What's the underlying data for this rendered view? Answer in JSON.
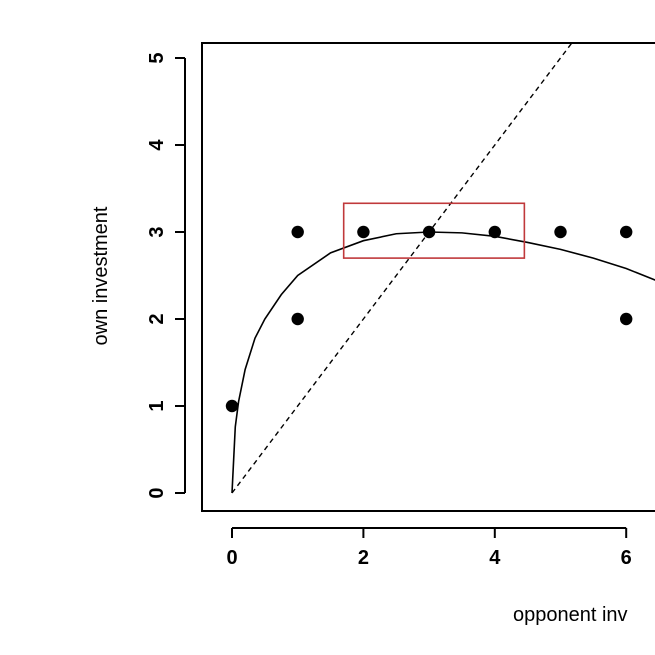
{
  "chart_data": {
    "type": "scatter",
    "xlabel": "opponent inv",
    "ylabel": "own investment",
    "xlim": [
      0,
      6.5
    ],
    "ylim": [
      0,
      5
    ],
    "x_ticks": [
      "0",
      "2",
      "4",
      "6"
    ],
    "y_ticks": [
      "0",
      "1",
      "2",
      "3",
      "4",
      "5"
    ],
    "grid": false,
    "series": [
      {
        "type": "scatter",
        "marker": "filled-circle",
        "color": "#000000",
        "points": [
          {
            "x": 0,
            "y": 1
          },
          {
            "x": 1,
            "y": 3
          },
          {
            "x": 1,
            "y": 2
          },
          {
            "x": 2,
            "y": 3
          },
          {
            "x": 3,
            "y": 3
          },
          {
            "x": 4,
            "y": 3
          },
          {
            "x": 5,
            "y": 3
          },
          {
            "x": 6,
            "y": 3
          },
          {
            "x": 6,
            "y": 2
          }
        ]
      },
      {
        "type": "line",
        "style": "solid",
        "color": "#000000",
        "points": [
          {
            "x": 0,
            "y": 0
          },
          {
            "x": 0.05,
            "y": 0.76
          },
          {
            "x": 0.1,
            "y": 1.05
          },
          {
            "x": 0.2,
            "y": 1.42
          },
          {
            "x": 0.35,
            "y": 1.78
          },
          {
            "x": 0.5,
            "y": 2.0
          },
          {
            "x": 0.75,
            "y": 2.28
          },
          {
            "x": 1.0,
            "y": 2.5
          },
          {
            "x": 1.5,
            "y": 2.76
          },
          {
            "x": 2.0,
            "y": 2.9
          },
          {
            "x": 2.5,
            "y": 2.98
          },
          {
            "x": 3.0,
            "y": 3.0
          },
          {
            "x": 3.5,
            "y": 2.99
          },
          {
            "x": 4.0,
            "y": 2.95
          },
          {
            "x": 4.5,
            "y": 2.88
          },
          {
            "x": 5.0,
            "y": 2.8
          },
          {
            "x": 5.5,
            "y": 2.7
          },
          {
            "x": 6.0,
            "y": 2.58
          },
          {
            "x": 6.5,
            "y": 2.43
          },
          {
            "x": 7.0,
            "y": 2.28
          }
        ]
      },
      {
        "type": "line",
        "style": "dashed",
        "color": "#000000",
        "points": [
          {
            "x": 0,
            "y": 0
          },
          {
            "x": 5.3,
            "y": 5.3
          }
        ]
      }
    ],
    "highlight_box": {
      "color": "#c0393b",
      "x_range": [
        1.7,
        4.45
      ],
      "y_range": [
        2.7,
        3.33
      ]
    }
  }
}
